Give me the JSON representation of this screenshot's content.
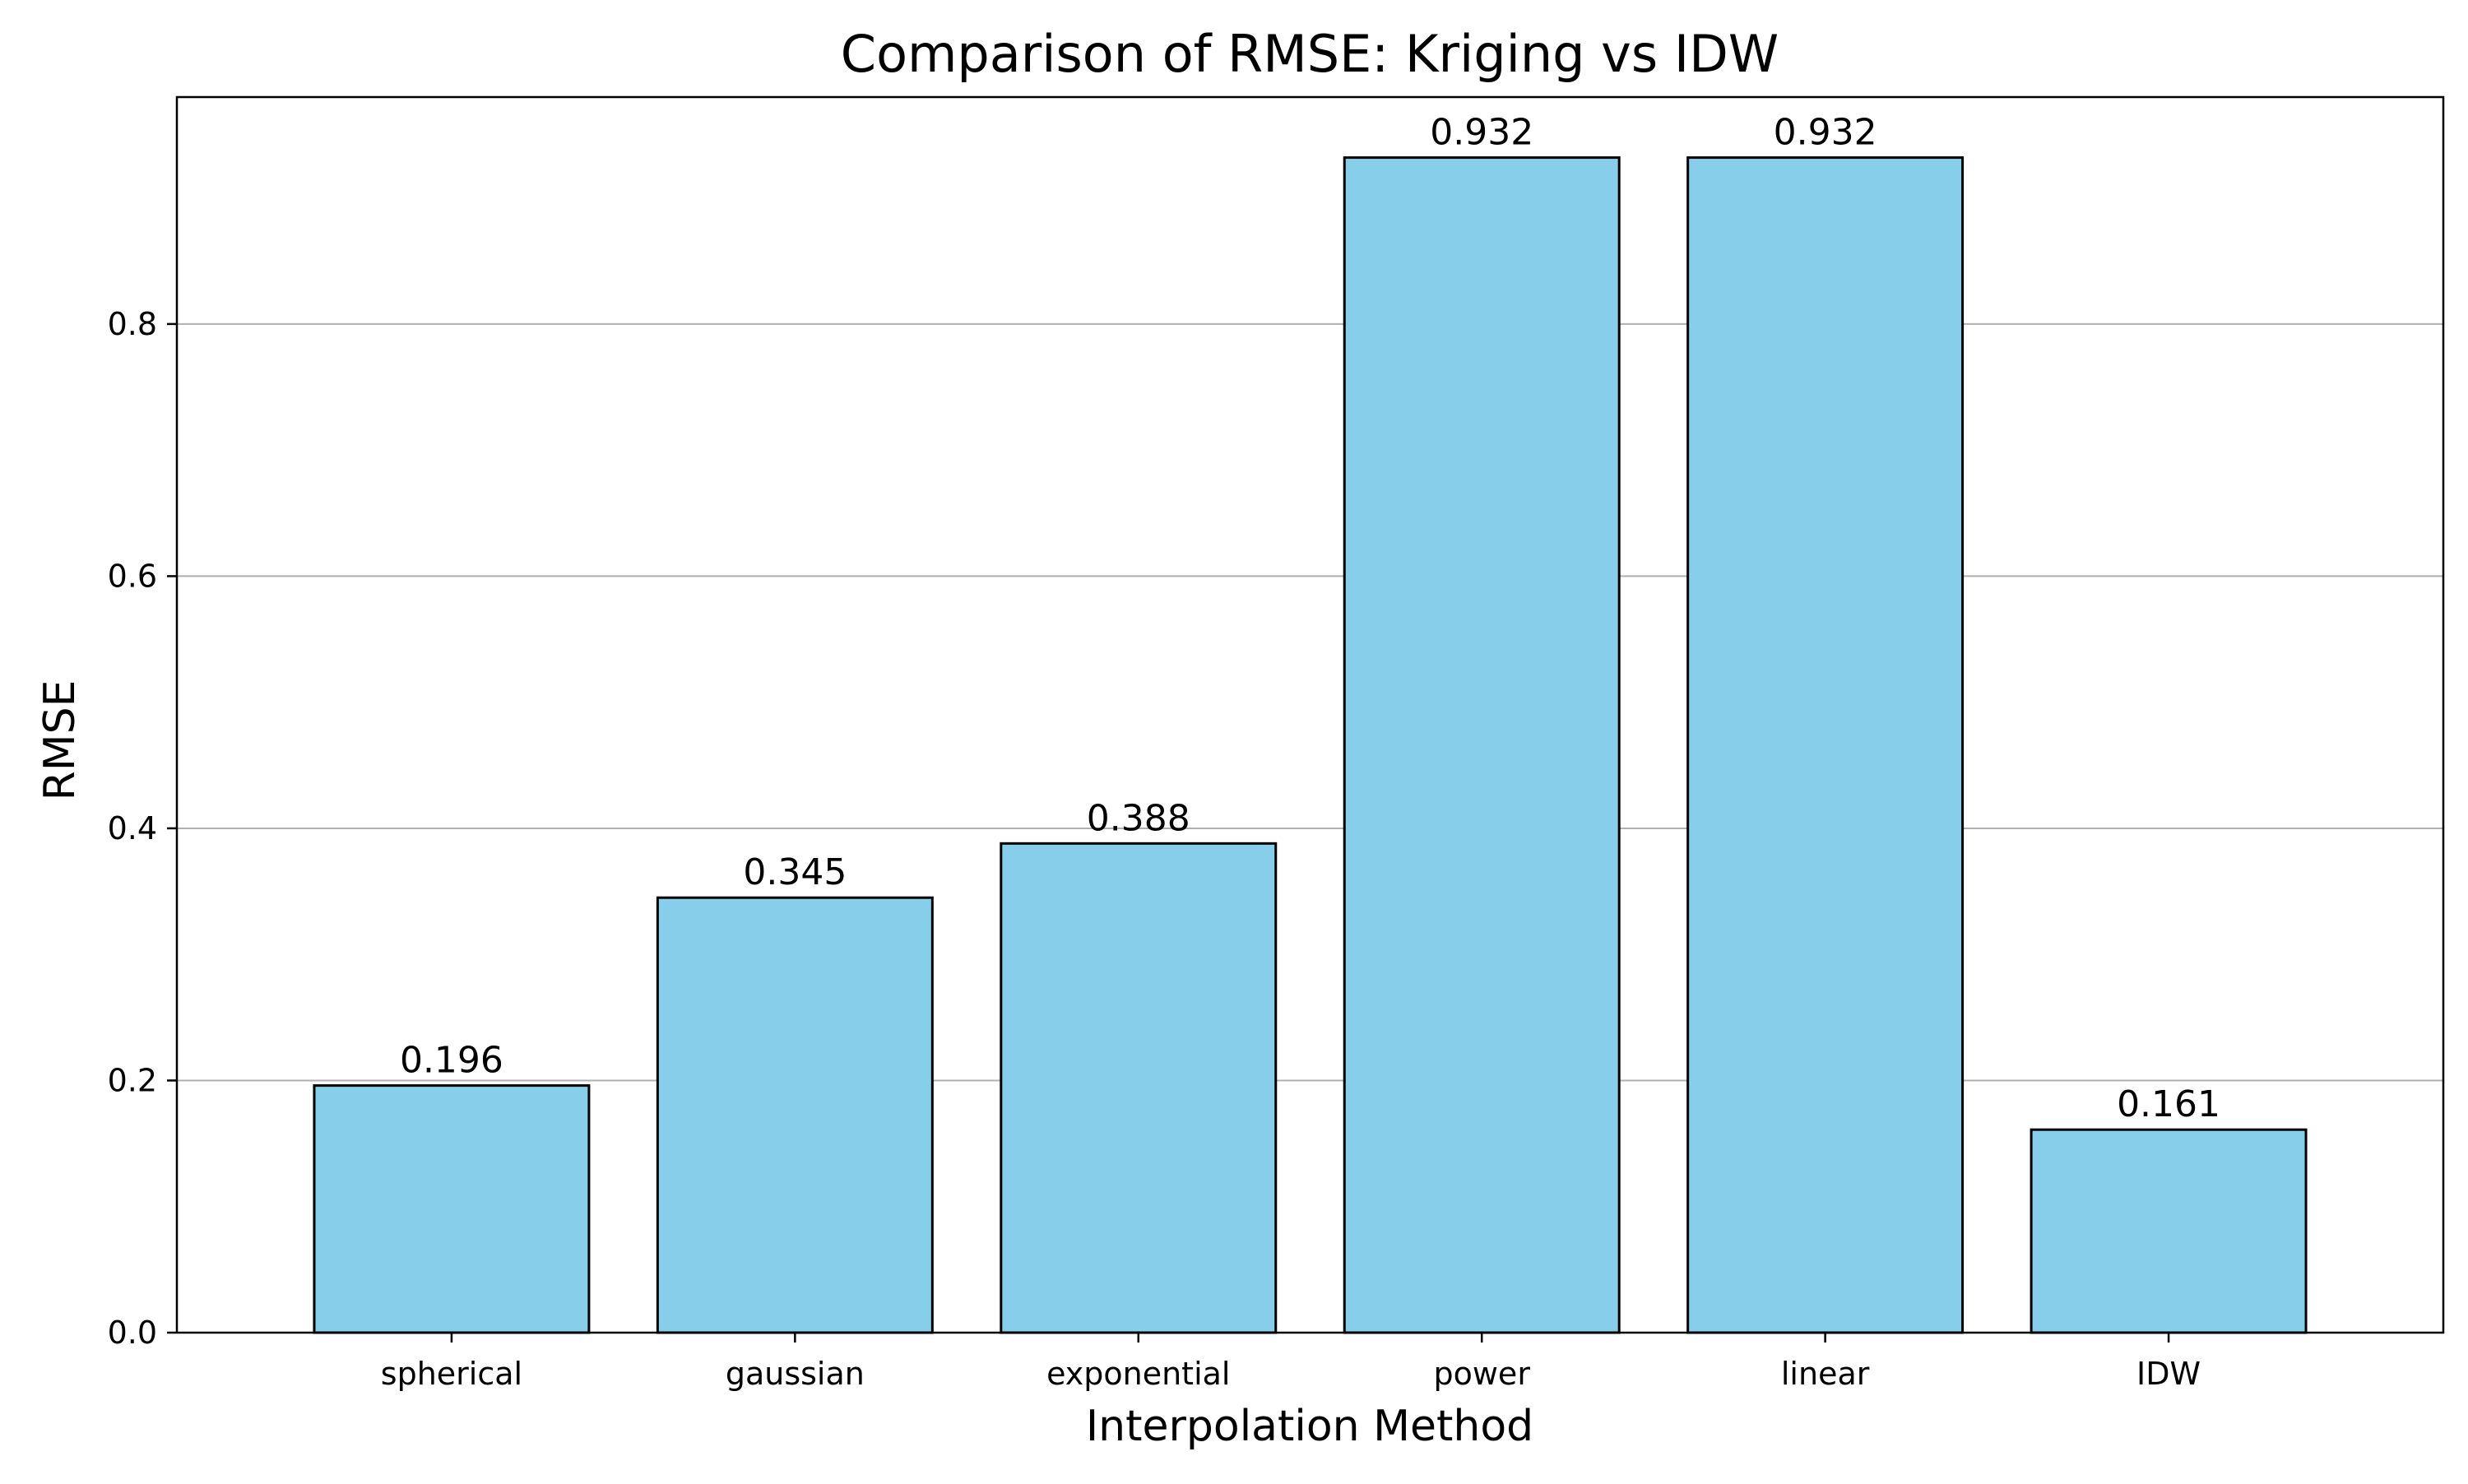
{
  "chart_data": {
    "type": "bar",
    "title": "Comparison of RMSE: Kriging vs IDW",
    "xlabel": "Interpolation Method",
    "ylabel": "RMSE",
    "categories": [
      "spherical",
      "gaussian",
      "exponential",
      "power",
      "linear",
      "IDW"
    ],
    "values": [
      0.196,
      0.345,
      0.388,
      0.932,
      0.932,
      0.161
    ],
    "data_labels": [
      "0.196",
      "0.345",
      "0.388",
      "0.932",
      "0.932",
      "0.161"
    ],
    "ylim": [
      0,
      0.98
    ],
    "yticks": [
      0.0,
      0.2,
      0.4,
      0.6,
      0.8
    ],
    "ytick_labels": [
      "0.0",
      "0.2",
      "0.4",
      "0.6",
      "0.8"
    ],
    "grid": "horizontal",
    "colors": {
      "bar_fill": "#87CEEB",
      "bar_edge": "#000000",
      "grid": "#b0b0b0",
      "axes": "#000000"
    }
  }
}
